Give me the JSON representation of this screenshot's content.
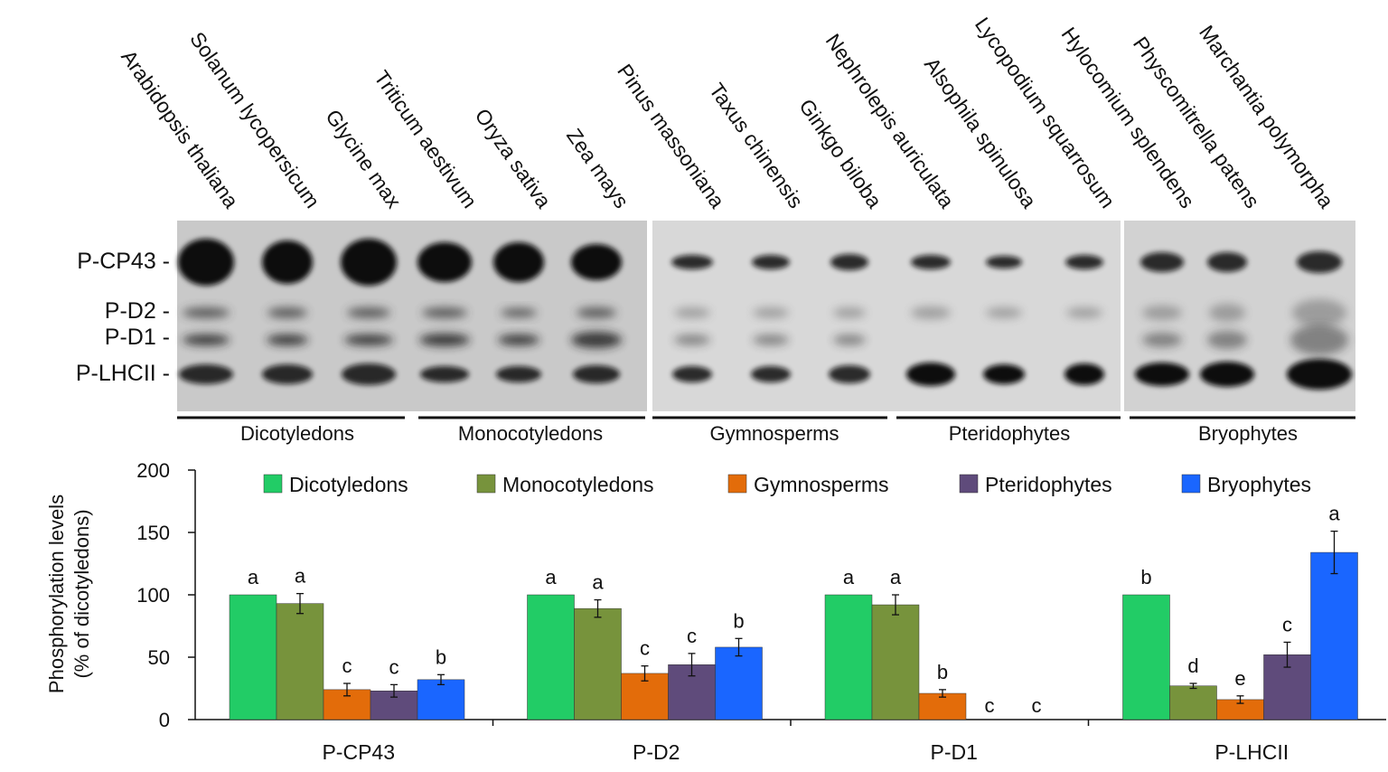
{
  "blot": {
    "species": [
      "Arabidopsis thaliana",
      "Solanum lycopersicum",
      "Glycine max",
      "Triticum aestivum",
      "Oryza sativa",
      "Zea mays",
      "Pinus massoniana",
      "Taxus chinensis",
      "Ginkgo biloba",
      "Nephrolepis auriculata",
      "Alsophila spinulosa",
      "Lycopodium squarrosum",
      "Hylocomium splendens",
      "Physcomitrella patens",
      "Marchantia polymorpha"
    ],
    "bands": [
      "P-CP43 -",
      "P-D2 -",
      "P-D1 -",
      "P-LHCII -"
    ],
    "groups": [
      "Dicotyledons",
      "Monocotyledons",
      "Gymnosperms",
      "Pteridophytes",
      "Bryophytes"
    ]
  },
  "chart_data": {
    "type": "bar",
    "ylabel_line1": "Phosphorylation levels",
    "ylabel_line2": "(% of dicotyledons)",
    "ylim": [
      0,
      200
    ],
    "yticks": [
      "0",
      "50",
      "100",
      "150",
      "200"
    ],
    "categories": [
      "P-CP43",
      "P-D2",
      "P-D1",
      "P-LHCII"
    ],
    "legend_position": "top",
    "series": [
      {
        "name": "Dicotyledons",
        "color": "#22cc66",
        "values": [
          100,
          100,
          100,
          100
        ],
        "errors": [
          0,
          0,
          0,
          0
        ],
        "letters": [
          "a",
          "a",
          "a",
          "b"
        ]
      },
      {
        "name": "Monocotyledons",
        "color": "#77933c",
        "values": [
          93,
          89,
          92,
          27
        ],
        "errors": [
          8,
          7,
          8,
          2
        ],
        "letters": [
          "a",
          "a",
          "a",
          "d"
        ]
      },
      {
        "name": "Gymnosperms",
        "color": "#e36c0a",
        "values": [
          24,
          37,
          21,
          16
        ],
        "errors": [
          5,
          6,
          3,
          3
        ],
        "letters": [
          "c",
          "c",
          "b",
          "e"
        ]
      },
      {
        "name": "Pteridophytes",
        "color": "#5f4b7b",
        "values": [
          23,
          44,
          0,
          52
        ],
        "errors": [
          5,
          9,
          0,
          10
        ],
        "letters": [
          "c",
          "c",
          "c",
          "c"
        ]
      },
      {
        "name": "Bryophytes",
        "color": "#1a66ff",
        "values": [
          32,
          58,
          0,
          134
        ],
        "errors": [
          4,
          7,
          0,
          17
        ],
        "letters": [
          "b",
          "b",
          "c",
          "a"
        ]
      }
    ]
  }
}
